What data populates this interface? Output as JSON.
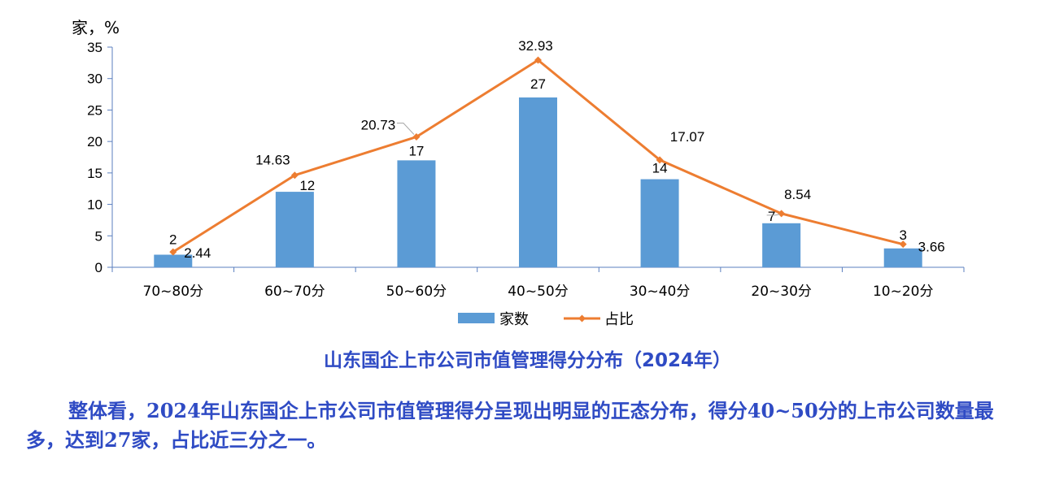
{
  "chart_data": {
    "type": "bar+line",
    "categories": [
      "70~80分",
      "60~70分",
      "50~60分",
      "40~50分",
      "30~40分",
      "20~30分",
      "10~20分"
    ],
    "series": [
      {
        "name": "家数",
        "type": "bar",
        "values": [
          2,
          12,
          17,
          27,
          14,
          7,
          3
        ],
        "color": "#5b9bd5"
      },
      {
        "name": "占比",
        "type": "line",
        "values": [
          2.44,
          14.63,
          20.73,
          32.93,
          17.07,
          8.54,
          3.66
        ],
        "color": "#ed7d31"
      }
    ],
    "bar_labels": [
      "2",
      "12",
      "17",
      "27",
      "14",
      "7",
      "3"
    ],
    "line_labels": [
      "2.44",
      "14.63",
      "20.73",
      "32.93",
      "17.07",
      "8.54",
      "3.66"
    ],
    "y_unit_label": "家，%",
    "ylim": [
      0,
      35
    ],
    "yticks": [
      0,
      5,
      10,
      15,
      20,
      25,
      30,
      35
    ],
    "ytick_labels": [
      "0",
      "5",
      "10",
      "15",
      "20",
      "25",
      "30",
      "35"
    ],
    "grid": false,
    "legend_position": "bottom",
    "title": "山东国企上市公司市值管理得分分布（2024年）"
  },
  "paragraph": "整体看，2024年山东国企上市公司市值管理得分呈现出明显的正态分布，得分40~50分的上市公司数量最多，达到27家，占比近三分之一。"
}
